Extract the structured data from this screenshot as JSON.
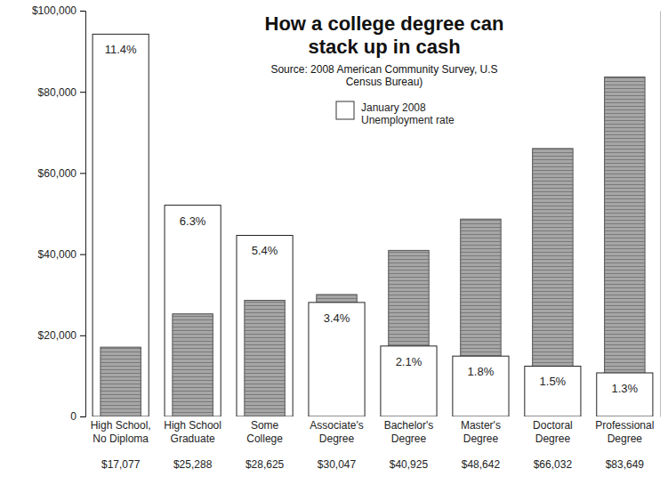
{
  "chart_data": {
    "type": "bar",
    "title": "How a college degree can stack up in cash",
    "subtitle": "Source: 2008 American Community Survey, U.S Census Bureau)",
    "categories": [
      "High School, No Diploma",
      "High School Graduate",
      "Some College",
      "Associate's Degree",
      "Bachelor's Degree",
      "Master's Degree",
      "Doctoral Degree",
      "Professional Degree"
    ],
    "series": [
      {
        "values": [
          17077,
          25288,
          28625,
          30047,
          40925,
          48642,
          66032,
          83649
        ],
        "value_labels": [
          "$17,077",
          "$25,288",
          "$28,625",
          "$30,047",
          "$40,925",
          "$48,642",
          "$66,032",
          "$83,649"
        ],
        "color": "#a6a6a6"
      },
      {
        "name": "January 2008 Unemployment rate",
        "axis": "y2",
        "values": [
          11.4,
          6.3,
          5.4,
          3.4,
          2.1,
          1.8,
          1.5,
          1.3
        ],
        "value_labels": [
          "11.4%",
          "6.3%",
          "5.4%",
          "3.4%",
          "2.1%",
          "1.8%",
          "1.5%",
          "1.3%"
        ],
        "color": "#ffffff"
      }
    ],
    "ylim": [
      0,
      100000
    ],
    "yticks": [
      0,
      {
        "value": 20000,
        "label": "$20,000"
      },
      {
        "value": 40000,
        "label": "$40,000"
      },
      {
        "value": 60000,
        "label": "$60,000"
      },
      {
        "value": 80000,
        "label": "$80,000"
      },
      {
        "value": 100000,
        "label": "$100,000"
      }
    ],
    "y2lim": [
      0,
      12.1
    ],
    "data_labels": true,
    "legend": "top",
    "grid": false
  }
}
